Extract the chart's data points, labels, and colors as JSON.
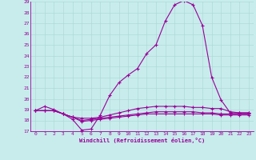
{
  "xlabel": "Windchill (Refroidissement éolien,°C)",
  "xlim": [
    -0.5,
    23.5
  ],
  "ylim": [
    17,
    29
  ],
  "yticks": [
    17,
    18,
    19,
    20,
    21,
    22,
    23,
    24,
    25,
    26,
    27,
    28,
    29
  ],
  "xticks": [
    0,
    1,
    2,
    3,
    4,
    5,
    6,
    7,
    8,
    9,
    10,
    11,
    12,
    13,
    14,
    15,
    16,
    17,
    18,
    19,
    20,
    21,
    22,
    23
  ],
  "background_color": "#c8ecec",
  "grid_color": "#b0d8d8",
  "line_color": "#990099",
  "lines": [
    [
      18.9,
      19.3,
      19.0,
      18.6,
      18.1,
      17.1,
      17.2,
      18.5,
      20.3,
      21.5,
      22.2,
      22.8,
      24.2,
      25.0,
      27.2,
      28.7,
      29.1,
      28.7,
      26.8,
      22.0,
      19.9,
      18.7,
      18.7,
      18.7
    ],
    [
      18.9,
      18.9,
      18.9,
      18.6,
      18.3,
      18.2,
      18.2,
      18.3,
      18.5,
      18.7,
      18.9,
      19.1,
      19.2,
      19.3,
      19.3,
      19.3,
      19.3,
      19.2,
      19.2,
      19.1,
      19.1,
      18.8,
      18.7,
      18.7
    ],
    [
      18.9,
      18.9,
      18.9,
      18.6,
      18.3,
      18.0,
      18.1,
      18.2,
      18.3,
      18.4,
      18.5,
      18.6,
      18.7,
      18.8,
      18.8,
      18.8,
      18.8,
      18.8,
      18.7,
      18.7,
      18.6,
      18.6,
      18.6,
      18.6
    ],
    [
      18.9,
      18.9,
      18.9,
      18.6,
      18.3,
      17.9,
      18.0,
      18.1,
      18.2,
      18.3,
      18.4,
      18.5,
      18.6,
      18.6,
      18.6,
      18.6,
      18.6,
      18.6,
      18.6,
      18.6,
      18.5,
      18.5,
      18.5,
      18.5
    ]
  ]
}
